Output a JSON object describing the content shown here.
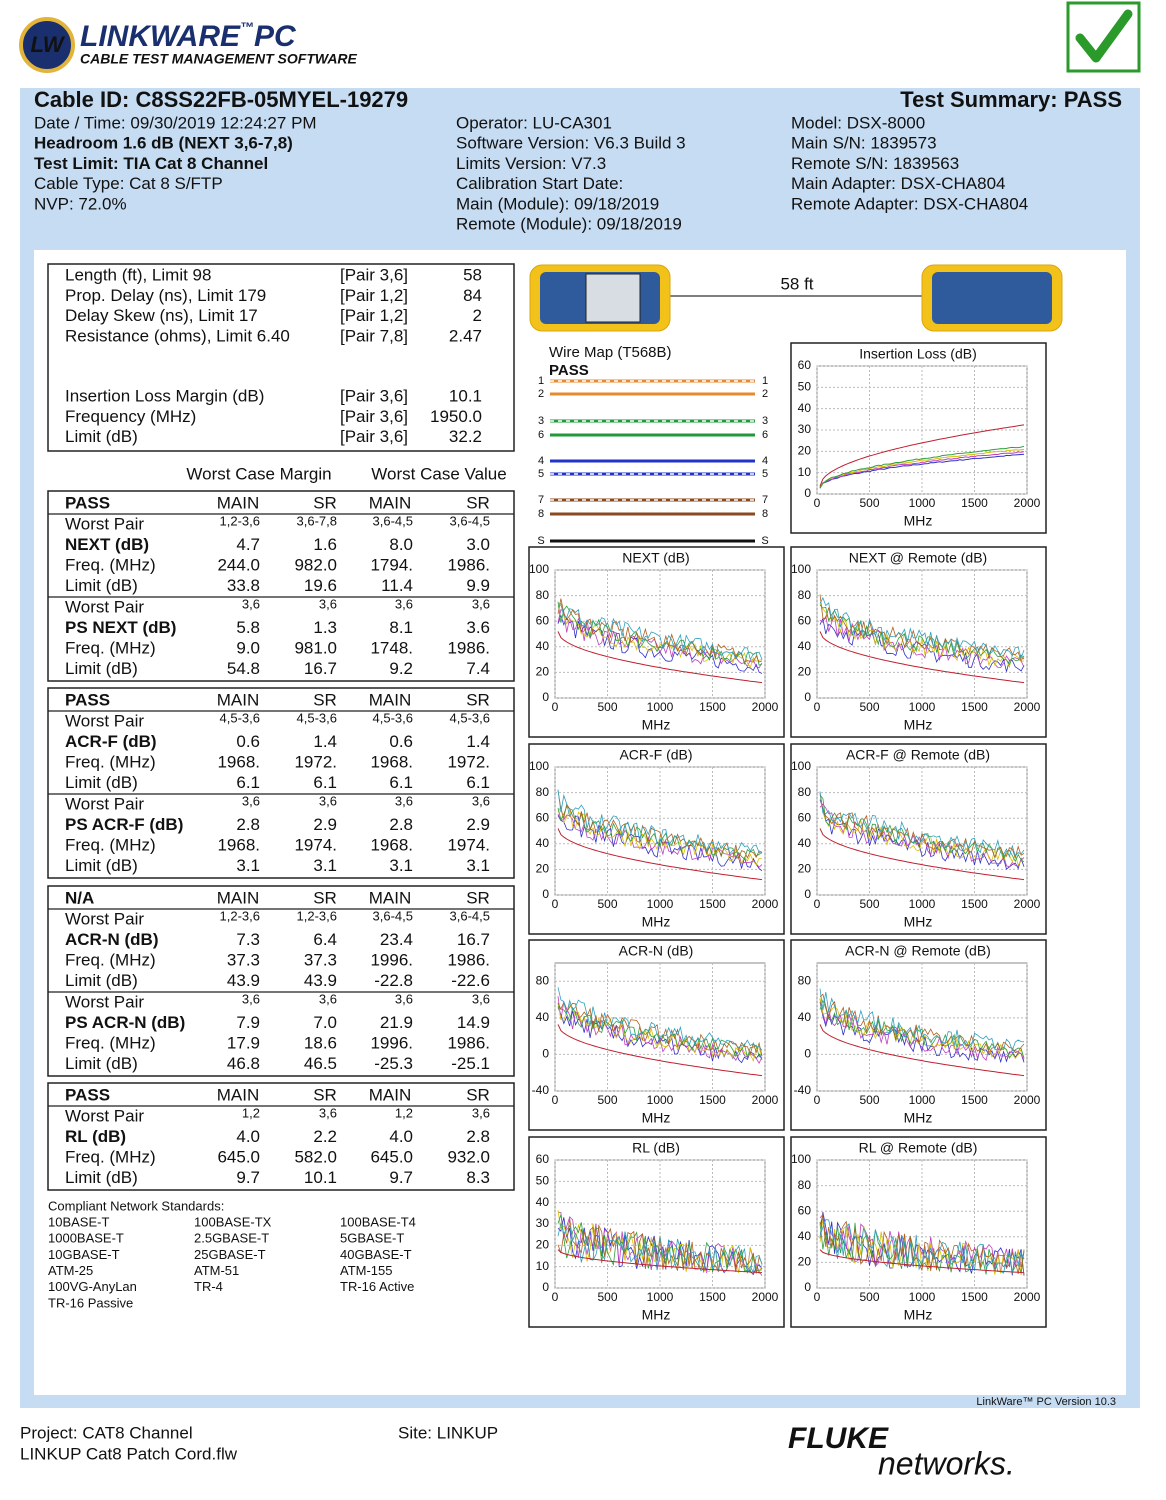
{
  "header": {
    "logo_badge": "LW",
    "product": "LINKWARE",
    "trademark": "™",
    "product_suffix": "PC",
    "tagline": "CABLE TEST MANAGEMENT SOFTWARE"
  },
  "summary": {
    "cable_id": "Cable ID: C8SS22FB-05MYEL-19279",
    "result": "Test Summary: PASS",
    "col1": [
      "Date / Time: 09/30/2019  12:24:27 PM",
      "Headroom 1.6 dB (NEXT 3,6-7,8)",
      "Test Limit: TIA Cat 8 Channel",
      "Cable Type: Cat 8 S/FTP",
      "NVP: 72.0%"
    ],
    "col2": [
      "Operator: LU-CA301",
      "Software Version: V6.3 Build 3",
      "Limits Version: V7.3",
      "Calibration Start Date:",
      " Main (Module): 09/18/2019",
      " Remote (Module): 09/18/2019"
    ],
    "col3": [
      "Model: DSX-8000",
      "Main S/N: 1839573",
      "Remote S/N: 1839563",
      "Main Adapter: DSX-CHA804",
      "Remote Adapter: DSX-CHA804"
    ]
  },
  "measurements": [
    [
      [
        "Length (ft), Limit 98",
        "[Pair 3,6]",
        "58"
      ],
      [
        "Prop. Delay (ns), Limit 179",
        "[Pair 1,2]",
        "84"
      ],
      [
        "Delay Skew (ns), Limit 17",
        "[Pair 1,2]",
        "2"
      ],
      [
        "Resistance (ohms), Limit 6.40",
        "[Pair 7,8]",
        "2.47"
      ]
    ],
    [
      [
        "Insertion Loss Margin (dB)",
        "[Pair 3,6]",
        "10.1"
      ],
      [
        "Frequency (MHz)",
        "[Pair 3,6]",
        "1950.0"
      ],
      [
        "Limit (dB)",
        "[Pair 3,6]",
        "32.2"
      ]
    ]
  ],
  "worst_case": {
    "margin": "Worst Case Margin",
    "value": "Worst Case Value"
  },
  "sections": [
    {
      "status": "PASS",
      "columns": [
        "MAIN",
        "SR",
        "MAIN",
        "SR"
      ],
      "groups": [
        [
          [
            "Worst Pair",
            "1,2-3,6",
            "3,6-7,8",
            "3,6-4,5",
            "3,6-4,5"
          ],
          [
            "NEXT (dB)",
            "4.7",
            "1.6",
            "8.0",
            "3.0"
          ],
          [
            "Freq. (MHz)",
            "244.0",
            "982.0",
            "1794.",
            "1986."
          ],
          [
            "Limit (dB)",
            "33.8",
            "19.6",
            "11.4",
            "9.9"
          ]
        ],
        [
          [
            "Worst Pair",
            "3,6",
            "3,6",
            "3,6",
            "3,6"
          ],
          [
            "PS NEXT (dB)",
            "5.8",
            "1.3",
            "8.1",
            "3.6"
          ],
          [
            "Freq. (MHz)",
            "9.0",
            "981.0",
            "1748.",
            "1986."
          ],
          [
            "Limit (dB)",
            "54.8",
            "16.7",
            "9.2",
            "7.4"
          ]
        ]
      ]
    },
    {
      "status": "PASS",
      "columns": [
        "MAIN",
        "SR",
        "MAIN",
        "SR"
      ],
      "groups": [
        [
          [
            "Worst Pair",
            "4,5-3,6",
            "4,5-3,6",
            "4,5-3,6",
            "4,5-3,6"
          ],
          [
            "ACR-F (dB)",
            "0.6",
            "1.4",
            "0.6",
            "1.4"
          ],
          [
            "Freq. (MHz)",
            "1968.",
            "1972.",
            "1968.",
            "1972."
          ],
          [
            "Limit (dB)",
            "6.1",
            "6.1",
            "6.1",
            "6.1"
          ]
        ],
        [
          [
            "Worst Pair",
            "3,6",
            "3,6",
            "3,6",
            "3,6"
          ],
          [
            "PS ACR-F (dB)",
            "2.8",
            "2.9",
            "2.8",
            "2.9"
          ],
          [
            "Freq. (MHz)",
            "1968.",
            "1974.",
            "1968.",
            "1974."
          ],
          [
            "Limit (dB)",
            "3.1",
            "3.1",
            "3.1",
            "3.1"
          ]
        ]
      ]
    },
    {
      "status": "N/A",
      "columns": [
        "MAIN",
        "SR",
        "MAIN",
        "SR"
      ],
      "groups": [
        [
          [
            "Worst Pair",
            "1,2-3,6",
            "1,2-3,6",
            "3,6-4,5",
            "3,6-4,5"
          ],
          [
            "ACR-N (dB)",
            "7.3",
            "6.4",
            "23.4",
            "16.7"
          ],
          [
            "Freq. (MHz)",
            "37.3",
            "37.3",
            "1996.",
            "1986."
          ],
          [
            "Limit (dB)",
            "43.9",
            "43.9",
            "-22.8",
            "-22.6"
          ]
        ],
        [
          [
            "Worst Pair",
            "3,6",
            "3,6",
            "3,6",
            "3,6"
          ],
          [
            "PS ACR-N (dB)",
            "7.9",
            "7.0",
            "21.9",
            "14.9"
          ],
          [
            "Freq. (MHz)",
            "17.9",
            "18.6",
            "1996.",
            "1986."
          ],
          [
            "Limit (dB)",
            "46.8",
            "46.5",
            "-25.3",
            "-25.1"
          ]
        ]
      ]
    },
    {
      "status": "PASS",
      "columns": [
        "MAIN",
        "SR",
        "MAIN",
        "SR"
      ],
      "groups": [
        [
          [
            "Worst Pair",
            "1,2",
            "3,6",
            "1,2",
            "3,6"
          ],
          [
            "RL (dB)",
            "4.0",
            "2.2",
            "4.0",
            "2.8"
          ],
          [
            "Freq. (MHz)",
            "645.0",
            "582.0",
            "645.0",
            "932.0"
          ],
          [
            "Limit (dB)",
            "9.7",
            "10.1",
            "9.7",
            "8.3"
          ]
        ]
      ]
    }
  ],
  "standards": {
    "title": "Compliant Network Standards:",
    "items": [
      "10BASE-T",
      "100BASE-TX",
      "100BASE-T4",
      "1000BASE-T",
      "2.5GBASE-T",
      "5GBASE-T",
      "10GBASE-T",
      "25GBASE-T",
      "40GBASE-T",
      "ATM-25",
      "ATM-51",
      "ATM-155",
      "100VG-AnyLan",
      "TR-4",
      "TR-16 Active",
      "TR-16 Passive"
    ]
  },
  "wiremap": {
    "length": "58 ft",
    "title": "Wire Map (T568B)",
    "result": "PASS",
    "pins": [
      "1",
      "2",
      "3",
      "6",
      "4",
      "5",
      "7",
      "8",
      "S"
    ]
  },
  "graphs": [
    {
      "title": "Insertion Loss (dB)",
      "xlabel": "MHz",
      "xlim": [
        0,
        2000
      ],
      "xticks": [
        0,
        500,
        1000,
        1500,
        2000
      ],
      "ylim": [
        0,
        60
      ],
      "yticks": [
        0,
        10,
        20,
        30,
        40,
        50,
        60
      ]
    },
    {
      "title": "NEXT (dB)",
      "xlabel": "MHz",
      "xlim": [
        0,
        2000
      ],
      "xticks": [
        0,
        500,
        1000,
        1500,
        2000
      ],
      "ylim": [
        0,
        100
      ],
      "yticks": [
        0,
        20,
        40,
        60,
        80,
        100
      ]
    },
    {
      "title": "NEXT @ Remote (dB)",
      "xlabel": "MHz",
      "xlim": [
        0,
        2000
      ],
      "xticks": [
        0,
        500,
        1000,
        1500,
        2000
      ],
      "ylim": [
        0,
        100
      ],
      "yticks": [
        0,
        20,
        40,
        60,
        80,
        100
      ]
    },
    {
      "title": "ACR-F (dB)",
      "xlabel": "MHz",
      "xlim": [
        0,
        2000
      ],
      "xticks": [
        0,
        500,
        1000,
        1500,
        2000
      ],
      "ylim": [
        0,
        100
      ],
      "yticks": [
        0,
        20,
        40,
        60,
        80,
        100
      ]
    },
    {
      "title": "ACR-F @ Remote (dB)",
      "xlabel": "MHz",
      "xlim": [
        0,
        2000
      ],
      "xticks": [
        0,
        500,
        1000,
        1500,
        2000
      ],
      "ylim": [
        0,
        100
      ],
      "yticks": [
        0,
        20,
        40,
        60,
        80,
        100
      ]
    },
    {
      "title": "ACR-N (dB)",
      "xlabel": "MHz",
      "xlim": [
        0,
        2000
      ],
      "xticks": [
        0,
        500,
        1000,
        1500,
        2000
      ],
      "ylim": [
        -40,
        100
      ],
      "yticks": [
        -40,
        0,
        40,
        80
      ]
    },
    {
      "title": "ACR-N @ Remote (dB)",
      "xlabel": "MHz",
      "xlim": [
        0,
        2000
      ],
      "xticks": [
        0,
        500,
        1000,
        1500,
        2000
      ],
      "ylim": [
        -40,
        100
      ],
      "yticks": [
        -40,
        0,
        40,
        80
      ]
    },
    {
      "title": "RL (dB)",
      "xlabel": "MHz",
      "xlim": [
        0,
        2000
      ],
      "xticks": [
        0,
        500,
        1000,
        1500,
        2000
      ],
      "ylim": [
        0,
        60
      ],
      "yticks": [
        0,
        10,
        20,
        30,
        40,
        50,
        60
      ]
    },
    {
      "title": "RL @ Remote (dB)",
      "xlabel": "MHz",
      "xlim": [
        0,
        2000
      ],
      "xticks": [
        0,
        500,
        1000,
        1500,
        2000
      ],
      "ylim": [
        0,
        100
      ],
      "yticks": [
        0,
        20,
        40,
        60,
        80,
        100
      ]
    }
  ],
  "footer": {
    "version": "LinkWare™ PC Version 10.3",
    "project": "Project: CAT8 Channel",
    "file": "LINKUP Cat8 Patch Cord.flw",
    "site": "Site: LINKUP",
    "brand_top": "FLUKE",
    "brand_bottom": "networks."
  }
}
